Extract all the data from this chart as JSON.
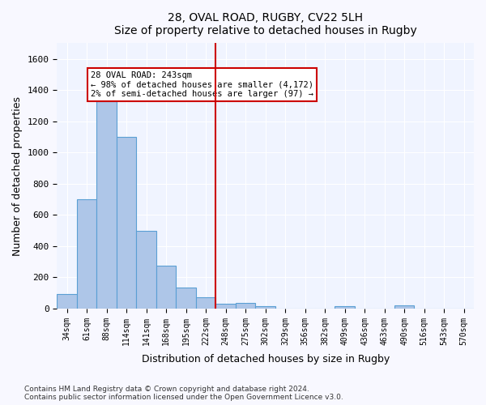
{
  "title": "28, OVAL ROAD, RUGBY, CV22 5LH",
  "subtitle": "Size of property relative to detached houses in Rugby",
  "xlabel": "Distribution of detached houses by size in Rugby",
  "ylabel": "Number of detached properties",
  "footer1": "Contains HM Land Registry data © Crown copyright and database right 2024.",
  "footer2": "Contains public sector information licensed under the Open Government Licence v3.0.",
  "annotation_title": "28 OVAL ROAD: 243sqm",
  "annotation_line1": "← 98% of detached houses are smaller (4,172)",
  "annotation_line2": "2% of semi-detached houses are larger (97) →",
  "bar_color": "#aec6e8",
  "bar_edge_color": "#5a9fd4",
  "vline_color": "#cc0000",
  "annotation_box_color": "#cc0000",
  "background_color": "#f0f4ff",
  "grid_color": "#ffffff",
  "categories": [
    "34sqm",
    "61sqm",
    "88sqm",
    "114sqm",
    "141sqm",
    "168sqm",
    "195sqm",
    "222sqm",
    "248sqm",
    "275sqm",
    "302sqm",
    "329sqm",
    "356sqm",
    "382sqm",
    "409sqm",
    "436sqm",
    "463sqm",
    "490sqm",
    "516sqm",
    "543sqm",
    "570sqm"
  ],
  "values": [
    95,
    700,
    1330,
    1100,
    500,
    275,
    135,
    70,
    30,
    35,
    15,
    0,
    0,
    0,
    15,
    0,
    0,
    20,
    0,
    0,
    0
  ],
  "vline_x": 8,
  "ylim": [
    0,
    1700
  ],
  "yticks": [
    0,
    200,
    400,
    600,
    800,
    1000,
    1200,
    1400,
    1600
  ]
}
